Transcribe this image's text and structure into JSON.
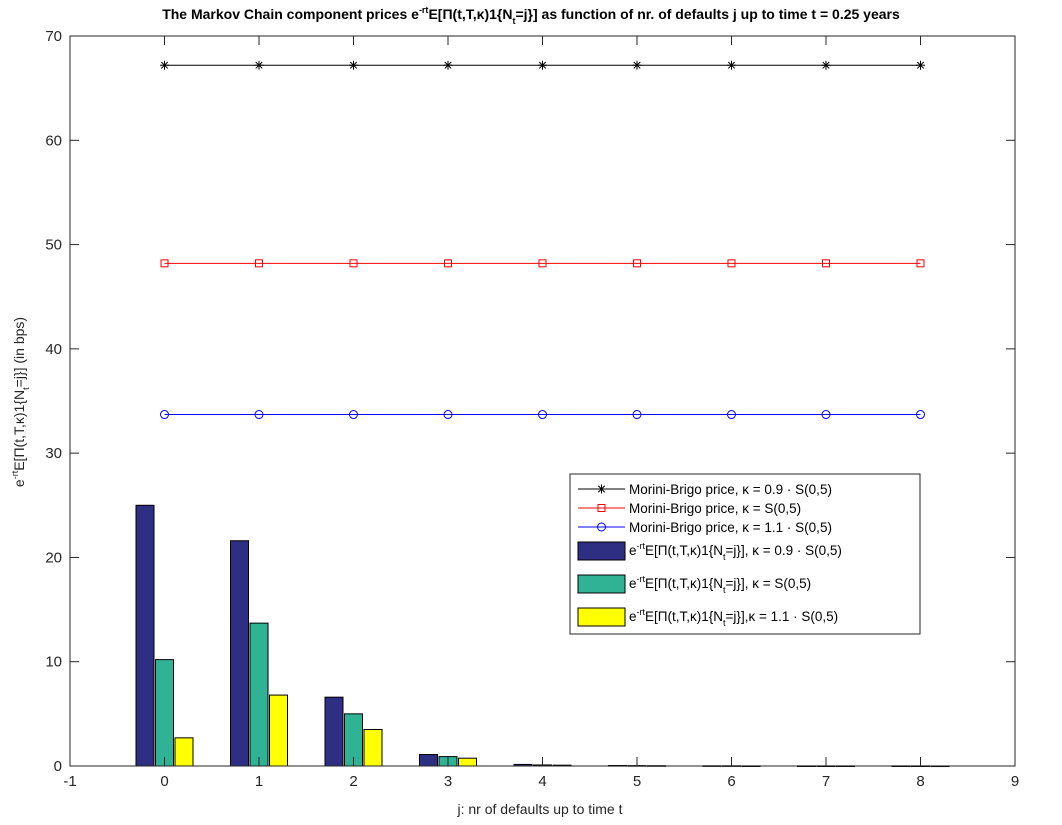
{
  "chart_data": {
    "type": "bar",
    "title": {
      "prefix": "The Markov Chain component prices e",
      "sup": "-rt",
      "middle": "E[Π(t,T,κ)1{N",
      "sub": "t",
      "suffix": "=j}] as function of nr. of defaults j up to time t = 0.25 years"
    },
    "xlabel": "j: nr of defaults up to time t",
    "ylabel": {
      "prefix": "e",
      "sup": "-rt",
      "middle": "E[Π(t,T,κ)1{N",
      "sub": "t",
      "suffix": "=j}]   (in bps)"
    },
    "xlim": [
      -1,
      9
    ],
    "ylim": [
      0,
      70
    ],
    "xticks": [
      "-1",
      "0",
      "1",
      "2",
      "3",
      "4",
      "5",
      "6",
      "7",
      "8",
      "9"
    ],
    "yticks": [
      "0",
      "10",
      "20",
      "30",
      "40",
      "50",
      "60",
      "70"
    ],
    "grid": false,
    "legend_position": "right-center",
    "x": [
      0,
      1,
      2,
      3,
      4,
      5,
      6,
      7,
      8
    ],
    "line_series": [
      {
        "name": "Morini-Brigo price, κ = 0.9 · S(0,5)",
        "marker": "asterisk",
        "color": "#000000",
        "values": [
          67.2,
          67.2,
          67.2,
          67.2,
          67.2,
          67.2,
          67.2,
          67.2,
          67.2
        ]
      },
      {
        "name": "Morini-Brigo price, κ = S(0,5)",
        "marker": "square",
        "color": "#ff0000",
        "values": [
          48.2,
          48.2,
          48.2,
          48.2,
          48.2,
          48.2,
          48.2,
          48.2,
          48.2
        ]
      },
      {
        "name": "Morini-Brigo price, κ = 1.1 · S(0,5)",
        "marker": "circle",
        "color": "#0000ff",
        "values": [
          33.7,
          33.7,
          33.7,
          33.7,
          33.7,
          33.7,
          33.7,
          33.7,
          33.7
        ]
      }
    ],
    "bar_series": [
      {
        "name_prefix": "e",
        "name_sup": "-rt",
        "name_middle": "E[Π(t,T,κ)1{N",
        "name_sub": "t",
        "name_suffix": "=j}], κ = 0.9 · S(0,5)",
        "color": "#2e2e83",
        "values": [
          25.0,
          21.6,
          6.6,
          1.1,
          0.15,
          0.05,
          0.02,
          0.01,
          0.01
        ]
      },
      {
        "name_prefix": "e",
        "name_sup": "-rt",
        "name_middle": "E[Π(t,T,κ)1{N",
        "name_sub": "t",
        "name_suffix": "=j}], κ = S(0,5)",
        "color": "#2fb394",
        "values": [
          10.2,
          13.7,
          5.0,
          0.9,
          0.1,
          0.04,
          0.02,
          0.01,
          0.01
        ]
      },
      {
        "name_prefix": "e",
        "name_sup": "-rt",
        "name_middle": "E[Π(t,T,κ)1{N",
        "name_sub": "t",
        "name_suffix": "=j}],κ = 1.1 · S(0,5)",
        "color": "#ffff00",
        "values": [
          2.7,
          6.8,
          3.5,
          0.75,
          0.08,
          0.03,
          0.01,
          0.01,
          0.005
        ]
      }
    ]
  }
}
